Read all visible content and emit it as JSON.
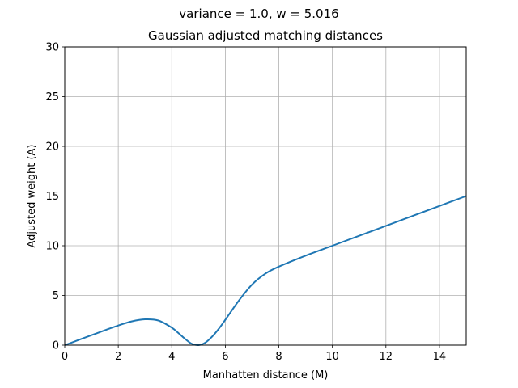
{
  "chart_data": {
    "type": "line",
    "suptitle": "variance = 1.0, w = 5.016",
    "title": "Gaussian adjusted matching distances",
    "xlabel": "Manhatten distance (M)",
    "ylabel": "Adjusted weight (A)",
    "xlim": [
      0,
      15
    ],
    "ylim": [
      0,
      30
    ],
    "xticks": [
      0,
      2,
      4,
      6,
      8,
      10,
      12,
      14
    ],
    "yticks": [
      0,
      5,
      10,
      15,
      20,
      25,
      30
    ],
    "xtick_labels": [
      "0",
      "2",
      "4",
      "6",
      "8",
      "10",
      "12",
      "14"
    ],
    "ytick_labels": [
      "0",
      "5",
      "10",
      "15",
      "20",
      "25",
      "30"
    ],
    "grid": true,
    "legend": false,
    "series": [
      {
        "color": "#1f77b4",
        "x": [
          0,
          0.5,
          1,
          1.5,
          2,
          2.5,
          3,
          3.5,
          4,
          4.25,
          4.5,
          4.75,
          5,
          5.25,
          5.5,
          5.75,
          6,
          6.5,
          7,
          7.5,
          8,
          9,
          10,
          11,
          12,
          13,
          14,
          15
        ],
        "y": [
          0,
          0.5,
          1.0,
          1.5,
          1.98,
          2.39,
          2.6,
          2.48,
          1.76,
          1.21,
          0.62,
          0.13,
          0.0,
          0.25,
          0.84,
          1.63,
          2.55,
          4.46,
          6.1,
          7.2,
          7.9,
          9.0,
          10.0,
          11.0,
          12.0,
          13.0,
          14.0,
          15.0
        ]
      }
    ]
  }
}
